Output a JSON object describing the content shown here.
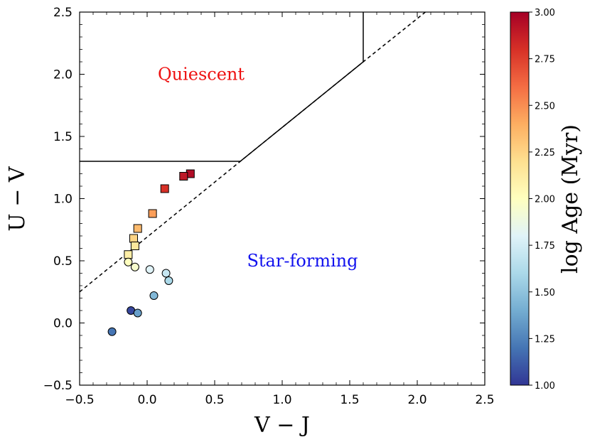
{
  "chart_data": {
    "type": "scatter",
    "xlabel": "V − J",
    "ylabel": "U − V",
    "xlim": [
      -0.5,
      2.5
    ],
    "ylim": [
      -0.5,
      2.5
    ],
    "xticks": [
      -0.5,
      0.0,
      0.5,
      1.0,
      1.5,
      2.0,
      2.5
    ],
    "yticks": [
      -0.5,
      0.0,
      0.5,
      1.0,
      1.5,
      2.0,
      2.5
    ],
    "xtick_labels": [
      "−0.5",
      "0.0",
      "0.5",
      "1.0",
      "1.5",
      "2.0",
      "2.5"
    ],
    "ytick_labels": [
      "−0.5",
      "0.0",
      "0.5",
      "1.0",
      "1.5",
      "2.0",
      "2.5"
    ],
    "regions": [
      {
        "label": "Quiescent",
        "x": 0.4,
        "y": 2.0,
        "color": "#ee1111"
      },
      {
        "label": "Star-forming",
        "x": 1.15,
        "y": 0.5,
        "color": "#1111ee"
      }
    ],
    "boundary_solid": [
      [
        -0.5,
        1.3
      ],
      [
        0.69,
        1.3
      ],
      [
        1.6,
        2.1
      ],
      [
        1.6,
        2.5
      ]
    ],
    "boundary_dashed": [
      [
        -0.5,
        0.25
      ],
      [
        0.69,
        1.3
      ],
      [
        1.6,
        2.1
      ],
      [
        2.06,
        2.5
      ]
    ],
    "colorbar": {
      "label": "log Age (Myr)",
      "range": [
        1.0,
        3.0
      ],
      "ticks": [
        1.0,
        1.25,
        1.5,
        1.75,
        2.0,
        2.25,
        2.5,
        2.75,
        3.0
      ],
      "tick_labels": [
        "1.00",
        "1.25",
        "1.50",
        "1.75",
        "2.00",
        "2.25",
        "2.50",
        "2.75",
        "3.00"
      ],
      "colormap": "RdYlBu_r"
    },
    "series": [
      {
        "name": "squares",
        "marker": "square",
        "points": [
          {
            "x": 0.32,
            "y": 1.2,
            "c": 2.95
          },
          {
            "x": 0.27,
            "y": 1.18,
            "c": 2.9
          },
          {
            "x": 0.13,
            "y": 1.08,
            "c": 2.8
          },
          {
            "x": 0.04,
            "y": 0.88,
            "c": 2.45
          },
          {
            "x": -0.07,
            "y": 0.76,
            "c": 2.35
          },
          {
            "x": -0.1,
            "y": 0.68,
            "c": 2.25
          },
          {
            "x": -0.09,
            "y": 0.62,
            "c": 2.15
          },
          {
            "x": -0.14,
            "y": 0.55,
            "c": 2.1
          }
        ]
      },
      {
        "name": "circles",
        "marker": "circle",
        "points": [
          {
            "x": -0.14,
            "y": 0.49,
            "c": 2.0
          },
          {
            "x": -0.09,
            "y": 0.45,
            "c": 1.95
          },
          {
            "x": 0.02,
            "y": 0.43,
            "c": 1.8
          },
          {
            "x": 0.14,
            "y": 0.4,
            "c": 1.7
          },
          {
            "x": 0.16,
            "y": 0.34,
            "c": 1.6
          },
          {
            "x": 0.05,
            "y": 0.22,
            "c": 1.45
          },
          {
            "x": -0.12,
            "y": 0.1,
            "c": 1.05
          },
          {
            "x": -0.07,
            "y": 0.08,
            "c": 1.35
          },
          {
            "x": -0.26,
            "y": -0.07,
            "c": 1.2
          }
        ]
      }
    ]
  }
}
